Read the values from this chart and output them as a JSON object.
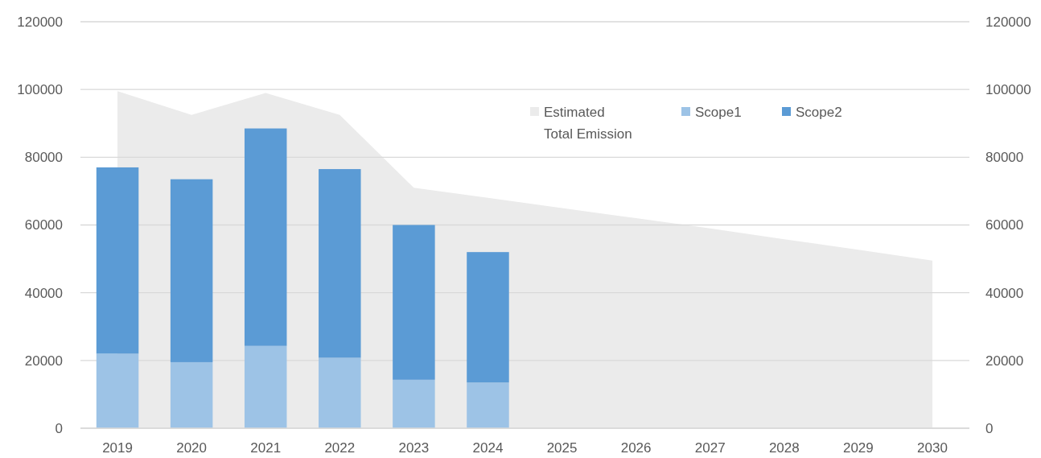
{
  "chart_data": {
    "type": "bar",
    "stacked": true,
    "categories": [
      "2019",
      "2020",
      "2021",
      "2022",
      "2023",
      "2024",
      "2025",
      "2026",
      "2027",
      "2028",
      "2029",
      "2030"
    ],
    "series": [
      {
        "name": "Estimated Total Emission",
        "type": "area",
        "axis": "y2",
        "color": "#ebebeb",
        "values": [
          99500,
          92500,
          99000,
          92500,
          71000,
          68000,
          65000,
          62000,
          59000,
          55800,
          52700,
          49500
        ]
      },
      {
        "name": "Scope1",
        "color": "#9dc3e6",
        "values": [
          22000,
          19500,
          24300,
          20800,
          14300,
          13500,
          null,
          null,
          null,
          null,
          null,
          null
        ]
      },
      {
        "name": "Scope2",
        "color": "#5b9bd5",
        "values": [
          55000,
          54000,
          64200,
          55700,
          45700,
          38500,
          null,
          null,
          null,
          null,
          null,
          null
        ]
      }
    ],
    "ylim": [
      0,
      120000
    ],
    "yticks": [
      0,
      20000,
      40000,
      60000,
      80000,
      100000,
      120000
    ],
    "y2lim": [
      0,
      120000
    ],
    "y2ticks": [
      0,
      20000,
      40000,
      60000,
      80000,
      100000,
      120000
    ],
    "grid": "y",
    "legend": "top right"
  }
}
